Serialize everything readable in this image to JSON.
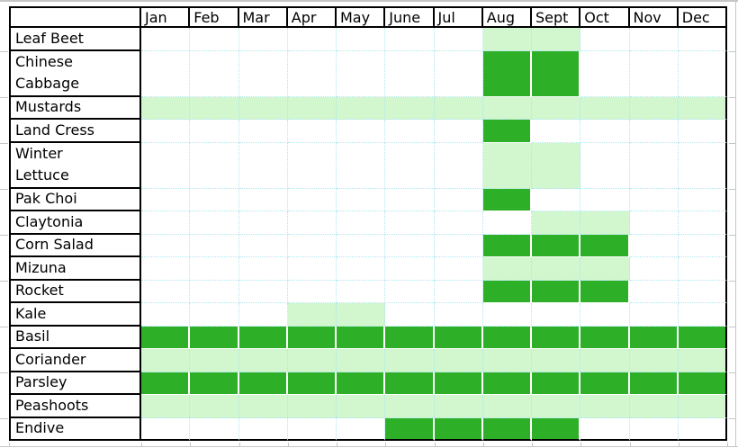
{
  "colors": {
    "fill_dark": "#2daf28",
    "fill_light": "#d2f6cd",
    "grid_dotted": "#aee7ef",
    "grid_gray": "#c6c6c6",
    "table_border": "#000000"
  },
  "chart_data": {
    "type": "heatmap",
    "title": "",
    "corner_label": "",
    "columns": [
      "Jan",
      "Feb",
      "Mar",
      "Apr",
      "May",
      "June",
      "Jul",
      "Aug",
      "Sept",
      "Oct",
      "Nov",
      "Dec"
    ],
    "cell_state_colors": {
      "dark": "#2daf28",
      "light": "#d2f6cd",
      "none": "#ffffff"
    },
    "rows": [
      {
        "label": "Leaf Beet",
        "cells": [
          "none",
          "none",
          "none",
          "none",
          "none",
          "none",
          "none",
          "light",
          "light",
          "none",
          "none",
          "none"
        ]
      },
      {
        "label": "Chinese\nCabbage",
        "cells": [
          "none",
          "none",
          "none",
          "none",
          "none",
          "none",
          "none",
          "dark",
          "dark",
          "none",
          "none",
          "none"
        ]
      },
      {
        "label": "Mustards",
        "cells": [
          "light",
          "light",
          "light",
          "light",
          "light",
          "light",
          "light",
          "light",
          "light",
          "light",
          "light",
          "light"
        ]
      },
      {
        "label": "Land Cress",
        "cells": [
          "none",
          "none",
          "none",
          "none",
          "none",
          "none",
          "none",
          "dark",
          "none",
          "none",
          "none",
          "none"
        ]
      },
      {
        "label": "Winter\nLettuce",
        "cells": [
          "none",
          "none",
          "none",
          "none",
          "none",
          "none",
          "none",
          "light",
          "light",
          "none",
          "none",
          "none"
        ]
      },
      {
        "label": "Pak Choi",
        "cells": [
          "none",
          "none",
          "none",
          "none",
          "none",
          "none",
          "none",
          "dark",
          "none",
          "none",
          "none",
          "none"
        ]
      },
      {
        "label": "Claytonia",
        "cells": [
          "none",
          "none",
          "none",
          "none",
          "none",
          "none",
          "none",
          "none",
          "light",
          "light",
          "none",
          "none"
        ]
      },
      {
        "label": "Corn Salad",
        "cells": [
          "none",
          "none",
          "none",
          "none",
          "none",
          "none",
          "none",
          "dark",
          "dark",
          "dark",
          "none",
          "none"
        ]
      },
      {
        "label": "Mizuna",
        "cells": [
          "none",
          "none",
          "none",
          "none",
          "none",
          "none",
          "none",
          "light",
          "light",
          "light",
          "none",
          "none"
        ]
      },
      {
        "label": "Rocket",
        "cells": [
          "none",
          "none",
          "none",
          "none",
          "none",
          "none",
          "none",
          "dark",
          "dark",
          "dark",
          "none",
          "none"
        ]
      },
      {
        "label": "Kale",
        "cells": [
          "none",
          "none",
          "none",
          "light",
          "light",
          "none",
          "none",
          "none",
          "none",
          "none",
          "none",
          "none"
        ]
      },
      {
        "label": "Basil",
        "cells": [
          "dark",
          "dark",
          "dark",
          "dark",
          "dark",
          "dark",
          "dark",
          "dark",
          "dark",
          "dark",
          "dark",
          "dark"
        ]
      },
      {
        "label": "Coriander",
        "cells": [
          "light",
          "light",
          "light",
          "light",
          "light",
          "light",
          "light",
          "light",
          "light",
          "light",
          "light",
          "light"
        ]
      },
      {
        "label": "Parsley",
        "cells": [
          "dark",
          "dark",
          "dark",
          "dark",
          "dark",
          "dark",
          "dark",
          "dark",
          "dark",
          "dark",
          "dark",
          "dark"
        ]
      },
      {
        "label": "Peashoots",
        "cells": [
          "light",
          "light",
          "light",
          "light",
          "light",
          "light",
          "light",
          "light",
          "light",
          "light",
          "light",
          "light"
        ]
      },
      {
        "label": "Endive",
        "cells": [
          "none",
          "none",
          "none",
          "none",
          "none",
          "dark",
          "dark",
          "dark",
          "dark",
          "none",
          "none",
          "none"
        ]
      }
    ]
  }
}
